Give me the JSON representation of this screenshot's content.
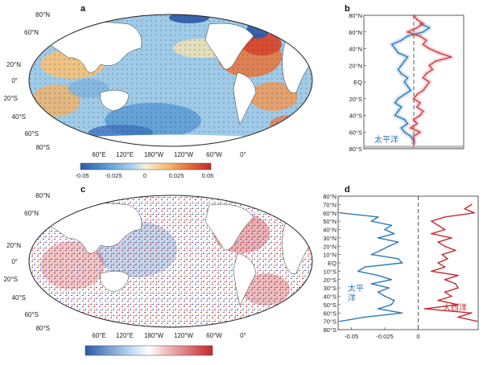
{
  "panels": {
    "a": "a",
    "b": "b",
    "c": "c",
    "d": "d"
  },
  "map_lat_labels": [
    "80°N",
    "60°N",
    "20°N",
    "0°",
    "20°S",
    "40°S",
    "60°S",
    "80°S"
  ],
  "map_lon_labels": [
    "60°E",
    "120°E",
    "180°W",
    "120°W",
    "60°W",
    "0°"
  ],
  "colorbar_a": {
    "ticks": [
      "-0.05",
      "-0.025",
      "0",
      "0.025",
      "0.05"
    ],
    "colors": [
      "#2c5aa8",
      "#5b9bd5",
      "#a9d4ee",
      "#f4f1d6",
      "#f6c27a",
      "#e8743b",
      "#c2272d"
    ]
  },
  "colorbar_c": {
    "ticks": [],
    "colors": [
      "#2c5aa8",
      "#ffffff",
      "#c2272d"
    ]
  },
  "chart_data": [
    {
      "type": "line",
      "panel": "b",
      "orientation": "vertical-latitude",
      "lat": [
        80,
        75,
        70,
        65,
        60,
        55,
        50,
        45,
        40,
        35,
        30,
        25,
        20,
        15,
        10,
        5,
        0,
        -5,
        -10,
        -15,
        -20,
        -25,
        -30,
        -35,
        -40,
        -45,
        -50,
        -55,
        -60,
        -65,
        -70,
        -75
      ],
      "ytick_labels": [
        "80°N",
        "60°N",
        "40°N",
        "20°N",
        "EQ",
        "20°S",
        "40°S",
        "60°S",
        "80°S"
      ],
      "series": [
        {
          "name": "太平洋",
          "color": "#2e7ab8",
          "values": [
            null,
            null,
            0.2,
            0.5,
            0.3,
            -0.2,
            -0.4,
            -0.7,
            -0.6,
            -0.5,
            -0.2,
            -0.3,
            -0.4,
            -0.5,
            -0.4,
            -0.2,
            -0.3,
            -0.2,
            -0.1,
            -0.3,
            -0.5,
            -0.6,
            -0.4,
            -0.5,
            -0.6,
            -0.3,
            -0.2,
            -0.4,
            -0.3,
            -0.1,
            0.0,
            0.0
          ]
        },
        {
          "name": "",
          "color": "#d03a44",
          "values": [
            0.0,
            0.1,
            0.3,
            0.1,
            -0.2,
            0.2,
            0.4,
            0.3,
            0.5,
            0.8,
            1.2,
            0.7,
            0.5,
            0.6,
            0.4,
            0.3,
            0.5,
            0.4,
            0.3,
            0.1,
            0.0,
            0.2,
            0.1,
            0.3,
            0.2,
            0.0,
            0.1,
            -0.1,
            0.2,
            0.0,
            0.0,
            0.0
          ]
        }
      ]
    },
    {
      "type": "line",
      "panel": "d",
      "orientation": "vertical-latitude",
      "lat": [
        80,
        75,
        70,
        65,
        60,
        55,
        50,
        45,
        40,
        35,
        30,
        25,
        20,
        15,
        10,
        5,
        0,
        -5,
        -10,
        -15,
        -20,
        -25,
        -30,
        -35,
        -40,
        -45,
        -50,
        -55,
        -60,
        -65,
        -70,
        -75,
        -80
      ],
      "ytick_labels": [
        "80°N",
        "70°N",
        "60°N",
        "50°N",
        "40°N",
        "30°N",
        "20°N",
        "10°N",
        "EQ",
        "10°S",
        "20°S",
        "30°S",
        "40°S",
        "50°S",
        "60°S",
        "70°S",
        "80°S"
      ],
      "xticks": [
        -0.05,
        -0.025,
        0
      ],
      "xtick_labels": [
        "-0.05",
        "-0.025",
        "0"
      ],
      "xlim": [
        -0.06,
        0.045
      ],
      "series": [
        {
          "name": "太平洋",
          "color": "#2e7ab8",
          "values": [
            null,
            null,
            null,
            null,
            -0.058,
            -0.03,
            -0.035,
            -0.02,
            -0.025,
            -0.018,
            -0.03,
            -0.015,
            -0.022,
            -0.028,
            -0.035,
            -0.015,
            -0.012,
            -0.04,
            -0.045,
            -0.03,
            -0.02,
            -0.035,
            -0.022,
            -0.03,
            -0.025,
            -0.018,
            -0.02,
            -0.03,
            -0.012,
            -0.04,
            -0.058,
            null,
            null
          ]
        },
        {
          "name": "大西洋",
          "color": "#c82a35",
          "values": [
            null,
            null,
            0.04,
            0.035,
            0.042,
            0.02,
            0.01,
            0.015,
            0.02,
            0.01,
            0.025,
            0.015,
            0.02,
            0.028,
            0.018,
            0.022,
            0.015,
            0.02,
            0.01,
            0.03,
            0.02,
            0.028,
            0.03,
            0.02,
            0.025,
            0.015,
            0.03,
            0.005,
            0.04,
            0.03,
            0.044,
            null,
            null
          ]
        }
      ]
    }
  ]
}
